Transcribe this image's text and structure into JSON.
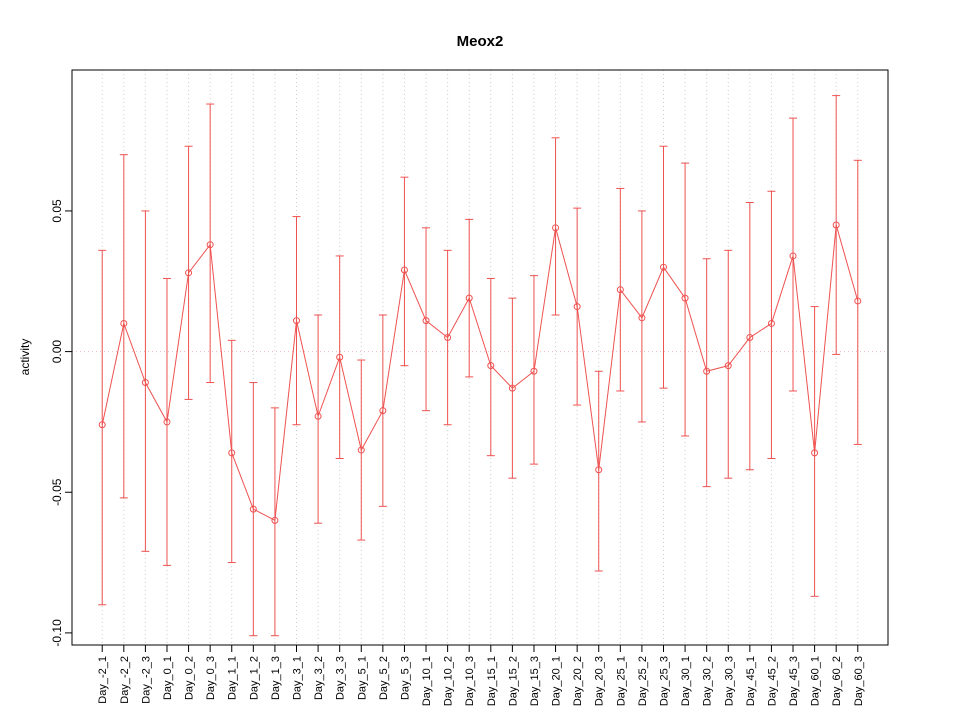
{
  "chart_data": {
    "type": "line",
    "title": "Meox2",
    "ylabel": "activity",
    "xlabel": "",
    "categories": [
      "Day_-2_1",
      "Day_-2_2",
      "Day_-2_3",
      "Day_0_1",
      "Day_0_2",
      "Day_0_3",
      "Day_1_1",
      "Day_1_2",
      "Day_1_3",
      "Day_3_1",
      "Day_3_2",
      "Day_3_3",
      "Day_5_1",
      "Day_5_2",
      "Day_5_3",
      "Day_10_1",
      "Day_10_2",
      "Day_10_3",
      "Day_15_1",
      "Day_15_2",
      "Day_15_3",
      "Day_20_1",
      "Day_20_2",
      "Day_20_3",
      "Day_25_1",
      "Day_25_2",
      "Day_25_3",
      "Day_30_1",
      "Day_30_2",
      "Day_30_3",
      "Day_45_1",
      "Day_45_2",
      "Day_45_3",
      "Day_60_1",
      "Day_60_2",
      "Day_60_3"
    ],
    "series": [
      {
        "name": "activity",
        "values": [
          -0.026,
          0.01,
          -0.011,
          -0.025,
          0.028,
          0.038,
          -0.036,
          -0.056,
          -0.06,
          0.011,
          -0.023,
          -0.002,
          -0.035,
          -0.021,
          0.029,
          0.011,
          0.005,
          0.019,
          -0.005,
          -0.013,
          -0.007,
          0.044,
          0.016,
          -0.042,
          0.022,
          0.012,
          0.03,
          0.019,
          -0.007,
          -0.005,
          0.005,
          0.01,
          0.034,
          -0.036,
          0.045,
          0.018
        ],
        "lower": [
          -0.09,
          -0.052,
          -0.071,
          -0.076,
          -0.017,
          -0.011,
          -0.075,
          -0.101,
          -0.101,
          -0.026,
          -0.061,
          -0.038,
          -0.067,
          -0.055,
          -0.005,
          -0.021,
          -0.026,
          -0.009,
          -0.037,
          -0.045,
          -0.04,
          0.013,
          -0.019,
          -0.078,
          -0.014,
          -0.025,
          -0.013,
          -0.03,
          -0.048,
          -0.045,
          -0.042,
          -0.038,
          -0.014,
          -0.087,
          -0.001,
          -0.033
        ],
        "upper": [
          0.036,
          0.07,
          0.05,
          0.026,
          0.073,
          0.088,
          0.004,
          -0.011,
          -0.02,
          0.048,
          0.013,
          0.034,
          -0.003,
          0.013,
          0.062,
          0.044,
          0.036,
          0.047,
          0.026,
          0.019,
          0.027,
          0.076,
          0.051,
          -0.007,
          0.058,
          0.05,
          0.073,
          0.067,
          0.033,
          0.036,
          0.053,
          0.057,
          0.083,
          0.016,
          0.091,
          0.068
        ]
      }
    ],
    "ylim": [
      -0.1043,
      0.1001
    ],
    "yticks": [
      {
        "value": -0.1,
        "label": "-0.10"
      },
      {
        "value": -0.05,
        "label": "-0.05"
      },
      {
        "value": 0.0,
        "label": "0.00"
      },
      {
        "value": 0.05,
        "label": "0.05"
      }
    ],
    "zero_line": true,
    "grid": "vertical-dotted",
    "legend": "none",
    "colors": {
      "series": "#ee5250",
      "grid": "#cccccc",
      "zero_line": "#f0b8b8",
      "axis": "#000000",
      "text": "#000000",
      "background": "#ffffff"
    }
  }
}
